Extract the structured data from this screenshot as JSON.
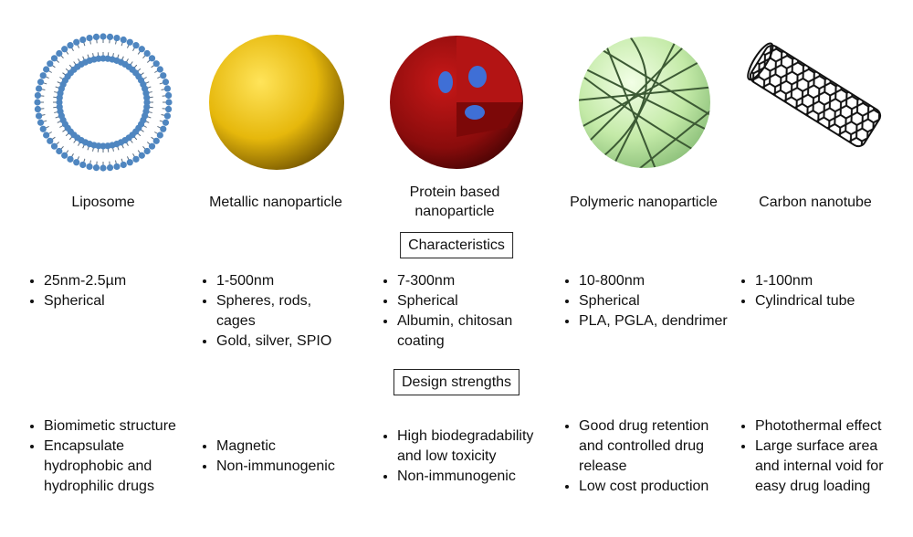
{
  "columns": [
    {
      "name": "Liposome",
      "characteristics": [
        "25nm-2.5µm",
        "Spherical"
      ],
      "strengths": [
        "Biomimetic structure",
        "Encapsulate hydrophobic and hydrophilic drugs"
      ]
    },
    {
      "name": "Metallic nanoparticle",
      "characteristics": [
        "1-500nm",
        "Spheres, rods, cages",
        "Gold, silver, SPIO"
      ],
      "strengths": [
        "Magnetic",
        "Non-immunogenic"
      ]
    },
    {
      "name": "Protein based nanoparticle",
      "characteristics": [
        "7-300nm",
        "Spherical",
        "Albumin, chitosan coating"
      ],
      "strengths": [
        "High biodegradability and low toxicity",
        "Non-immunogenic"
      ]
    },
    {
      "name": "Polymeric nanoparticle",
      "characteristics": [
        "10-800nm",
        "Spherical",
        "PLA, PGLA, dendrimer"
      ],
      "strengths": [
        "Good drug retention and controlled drug release",
        "Low cost production"
      ]
    },
    {
      "name": "Carbon nanotube",
      "characteristics": [
        "1-100nm",
        "Cylindrical tube"
      ],
      "strengths": [
        "Photothermal effect",
        "Large surface area and internal void for easy drug loading"
      ]
    }
  ],
  "sections": {
    "characteristics": "Characteristics",
    "strengths": "Design strengths"
  }
}
